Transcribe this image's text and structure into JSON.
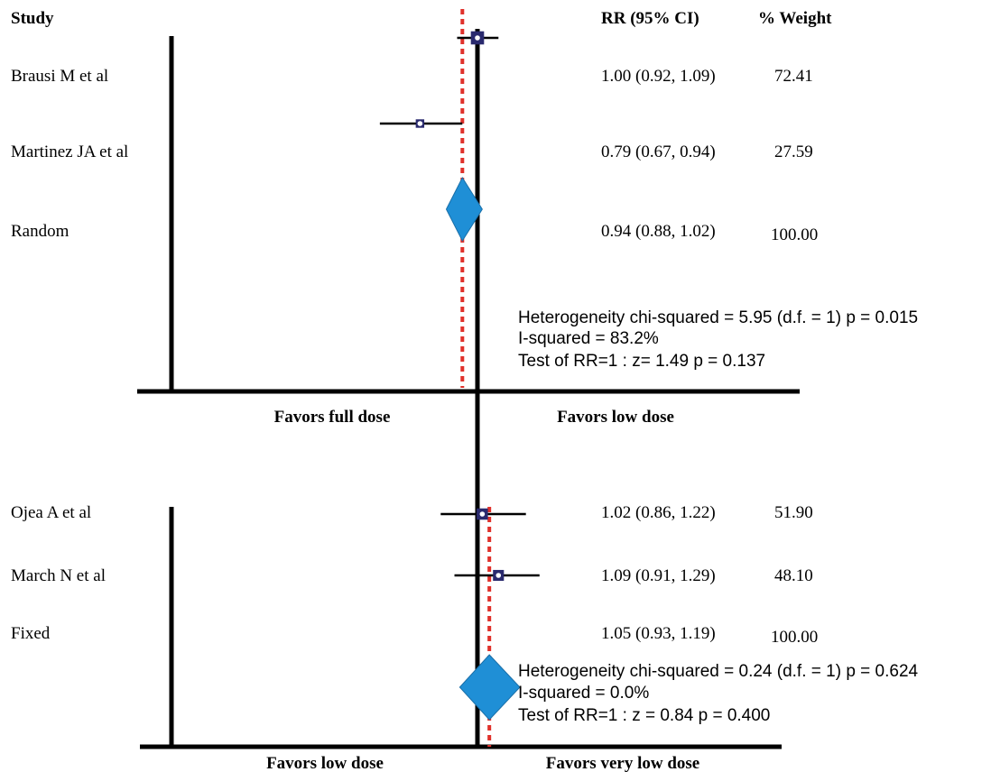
{
  "headers": {
    "study": "Study",
    "rr": "RR (95% CI)",
    "weight": "% Weight"
  },
  "colors": {
    "axis": "#000000",
    "null_line": "#e0302a",
    "diamond": "#1f8fd6",
    "study_box": "#2a2a6e"
  },
  "chart_data": [
    {
      "type": "forest",
      "pooled_label": "Random",
      "x_null": 1.0,
      "left_label": "Favors full dose",
      "right_label": "Favors low dose",
      "studies": [
        {
          "name": "Brausi M et al",
          "rr": 1.0,
          "lo": 0.92,
          "hi": 1.09,
          "ci_text": "1.00 (0.92, 1.09)",
          "weight": "72.41"
        },
        {
          "name": "Martinez JA et al",
          "rr": 0.79,
          "lo": 0.67,
          "hi": 0.94,
          "ci_text": "0.79 (0.67, 0.94)",
          "weight": "27.59"
        }
      ],
      "pooled": {
        "rr": 0.94,
        "lo": 0.88,
        "hi": 1.02,
        "ci_text": "0.94 (0.88, 1.02)",
        "weight": "100.00"
      },
      "stats": [
        "Heterogeneity chi-squared = 5.95 (d.f. = 1) p = 0.015",
        "I-squared =  83.2%",
        "Test of RR=1 : z= 1.49 p = 0.137"
      ]
    },
    {
      "type": "forest",
      "pooled_label": "Fixed",
      "x_null": 1.0,
      "left_label": "Favors low dose",
      "right_label": "Favors very low dose",
      "studies": [
        {
          "name": "Ojea A et al",
          "rr": 1.02,
          "lo": 0.86,
          "hi": 1.22,
          "ci_text": "1.02 (0.86, 1.22)",
          "weight": "51.90"
        },
        {
          "name": "March N  et al",
          "rr": 1.09,
          "lo": 0.91,
          "hi": 1.29,
          "ci_text": "1.09 (0.91, 1.29)",
          "weight": "48.10"
        }
      ],
      "pooled": {
        "rr": 1.05,
        "lo": 0.93,
        "hi": 1.19,
        "ci_text": "1.05 (0.93, 1.19)",
        "weight": "100.00"
      },
      "stats": [
        "Heterogeneity chi-squared = 0.24 (d.f. = 1) p = 0.624",
        "I-squared = 0.0%",
        "Test of RR=1 : z = 0.84 p = 0.400"
      ]
    }
  ]
}
